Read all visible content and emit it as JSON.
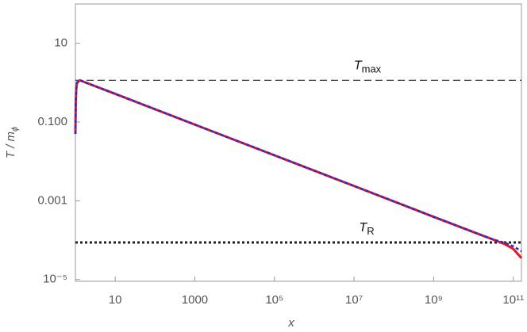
{
  "chart_data": {
    "type": "line",
    "x_label": "x",
    "y_label": {
      "text": "T / m",
      "sub": "ϕ"
    },
    "log_x": true,
    "log_y": true,
    "grid": false,
    "xlim": [
      1,
      160000000000.0
    ],
    "ylim": [
      9e-06,
      100
    ],
    "xticks": [
      10,
      1000,
      {
        "value": 100000,
        "label": "10⁵"
      },
      {
        "value": 10000000,
        "label": "10⁷"
      },
      {
        "value": 1000000000,
        "label": "10⁹"
      },
      {
        "value": 100000000000,
        "label": "10¹¹"
      }
    ],
    "yticks": [
      10,
      {
        "value": 0.1,
        "label": "0.100"
      },
      0.001,
      {
        "value": 1e-05,
        "label": "10⁻⁵"
      }
    ],
    "x": [
      1,
      1.02,
      1.05,
      1.1,
      1.3,
      2,
      10,
      1000,
      100000,
      10000000,
      1000000000,
      10000000000,
      30000000000,
      60000000000,
      100000000000,
      160000000000
    ],
    "series": [
      {
        "color": "#e8141e",
        "dash": "solid",
        "values": [
          0.05,
          0.3,
          0.7,
          1.0,
          1.15,
          0.97,
          0.52,
          0.086,
          0.0143,
          0.00237,
          0.00039,
          0.00016,
          0.000105,
          8e-05,
          6e-05,
          3.5e-05
        ]
      },
      {
        "color": "#1f2fd8",
        "dash": "dashed",
        "values": [
          0.05,
          0.3,
          0.7,
          1.0,
          1.15,
          0.97,
          0.52,
          0.086,
          0.0143,
          0.00237,
          0.00039,
          0.00016,
          0.000105,
          8.6e-05,
          7e-05,
          5.2e-05
        ]
      }
    ],
    "hlines": [
      {
        "value": 1.15,
        "style": "dashed",
        "label": {
          "text": "T",
          "sub": "max"
        }
      },
      {
        "value": 8.7e-05,
        "style": "dotted",
        "label": {
          "text": "T",
          "sub": "R"
        }
      }
    ]
  }
}
